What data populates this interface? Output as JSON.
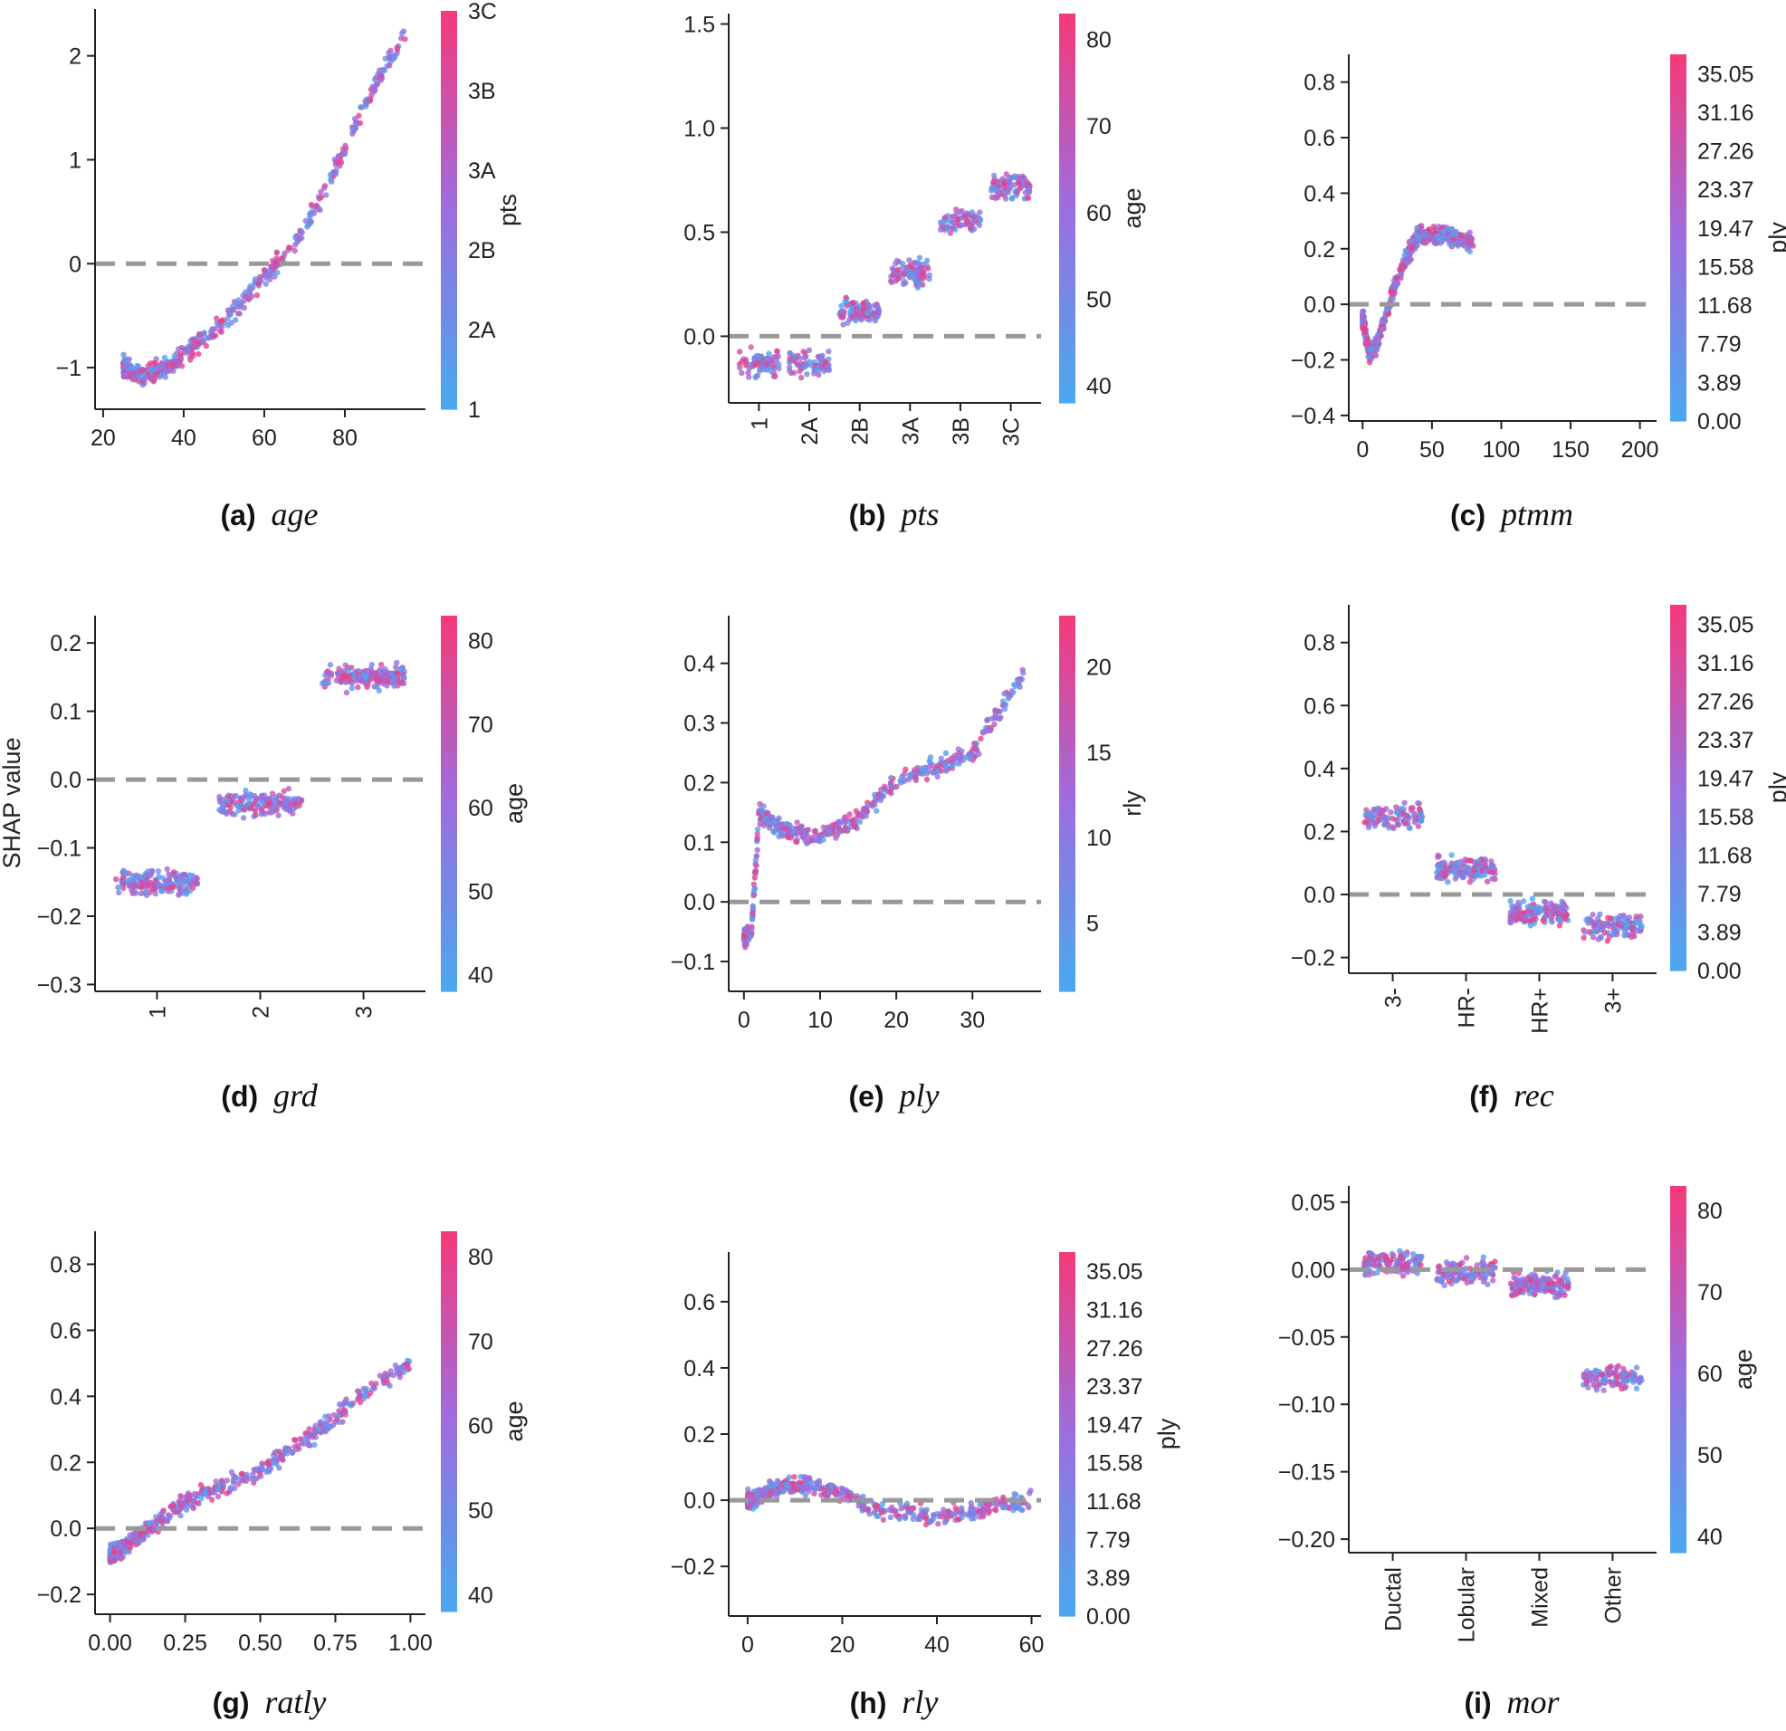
{
  "figure": {
    "y_axis_label": "SHAP value",
    "colors": {
      "low": "#4aa8f0",
      "mid": "#9b6ee0",
      "high": "#f43a7c",
      "zero_line": "#999999",
      "axis": "#222222"
    }
  },
  "chart_data": [
    {
      "id": "a",
      "type": "scatter",
      "caption_letter": "(a)",
      "caption_name": "age",
      "xlim": [
        18,
        100
      ],
      "ylim": [
        -1.4,
        2.45
      ],
      "xticks": [
        20,
        40,
        60,
        80
      ],
      "yticks": [
        -1,
        0,
        1,
        2
      ],
      "ytick_labels": [
        "−1",
        "0",
        "1",
        "2"
      ],
      "colorbar": {
        "label": "pts",
        "ticks": [
          "1",
          "2A",
          "2B",
          "3A",
          "3B",
          "3C"
        ]
      },
      "curve_points": [
        [
          25,
          -1.0
        ],
        [
          30,
          -1.08
        ],
        [
          35,
          -1.0
        ],
        [
          40,
          -0.88
        ],
        [
          45,
          -0.72
        ],
        [
          50,
          -0.55
        ],
        [
          55,
          -0.35
        ],
        [
          60,
          -0.12
        ],
        [
          65,
          0.08
        ],
        [
          70,
          0.33
        ],
        [
          75,
          0.7
        ],
        [
          80,
          1.12
        ],
        [
          85,
          1.5
        ],
        [
          90,
          1.9
        ],
        [
          95,
          2.2
        ]
      ]
    },
    {
      "id": "b",
      "type": "scatter",
      "caption_letter": "(b)",
      "caption_name": "pts",
      "categories": [
        "1",
        "2A",
        "2B",
        "3A",
        "3B",
        "3C"
      ],
      "ylim": [
        -0.32,
        1.55
      ],
      "yticks": [
        0.0,
        0.5,
        1.0,
        1.5
      ],
      "ytick_labels": [
        "0.0",
        "0.5",
        "1.0",
        "1.5"
      ],
      "colorbar": {
        "label": "age",
        "min": 38,
        "max": 83,
        "ticks": [
          40,
          50,
          60,
          70,
          80
        ]
      },
      "category_means": [
        -0.13,
        -0.13,
        0.12,
        0.3,
        0.55,
        0.72
      ]
    },
    {
      "id": "c",
      "type": "scatter",
      "caption_letter": "(c)",
      "caption_name": "ptmm",
      "xlim": [
        -10,
        212
      ],
      "ylim": [
        -0.42,
        0.9
      ],
      "xticks": [
        0,
        50,
        100,
        150,
        200
      ],
      "yticks": [
        -0.4,
        -0.2,
        0.0,
        0.2,
        0.4,
        0.6,
        0.8
      ],
      "ytick_labels": [
        "−0.4",
        "−0.2",
        "0.0",
        "0.2",
        "0.4",
        "0.6",
        "0.8"
      ],
      "colorbar": {
        "label": "ply",
        "min": 0,
        "max": 37,
        "ticks": [
          "0.00",
          "3.89",
          "7.79",
          "11.68",
          "15.58",
          "19.47",
          "23.37",
          "27.26",
          "31.16",
          "35.05"
        ]
      },
      "curve_points": [
        [
          0,
          -0.05
        ],
        [
          5,
          -0.18
        ],
        [
          10,
          -0.15
        ],
        [
          20,
          0.02
        ],
        [
          30,
          0.15
        ],
        [
          40,
          0.25
        ],
        [
          50,
          0.25
        ],
        [
          60,
          0.25
        ],
        [
          80,
          0.22
        ]
      ]
    },
    {
      "id": "d",
      "type": "scatter",
      "caption_letter": "(d)",
      "caption_name": "grd",
      "categories": [
        "1",
        "2",
        "3"
      ],
      "ylim": [
        -0.31,
        0.24
      ],
      "yticks": [
        -0.3,
        -0.2,
        -0.1,
        0.0,
        0.1,
        0.2
      ],
      "ytick_labels": [
        "−0.3",
        "−0.2",
        "−0.1",
        "0.0",
        "0.1",
        "0.2"
      ],
      "colorbar": {
        "label": "age",
        "min": 38,
        "max": 83,
        "ticks": [
          40,
          50,
          60,
          70,
          80
        ]
      },
      "category_means": [
        -0.15,
        -0.035,
        0.15
      ]
    },
    {
      "id": "e",
      "type": "scatter",
      "caption_letter": "(e)",
      "caption_name": "ply",
      "xlim": [
        -2,
        39
      ],
      "ylim": [
        -0.15,
        0.48
      ],
      "xticks": [
        0,
        10,
        20,
        30
      ],
      "yticks": [
        -0.1,
        0.0,
        0.1,
        0.2,
        0.3,
        0.4
      ],
      "ytick_labels": [
        "−0.1",
        "0.0",
        "0.1",
        "0.2",
        "0.3",
        "0.4"
      ],
      "colorbar": {
        "label": "rly",
        "min": 1,
        "max": 23,
        "ticks": [
          5,
          10,
          15,
          20
        ]
      },
      "curve_points": [
        [
          0,
          -0.06
        ],
        [
          1,
          -0.05
        ],
        [
          2,
          0.15
        ],
        [
          5,
          0.12
        ],
        [
          10,
          0.11
        ],
        [
          15,
          0.14
        ],
        [
          20,
          0.2
        ],
        [
          30,
          0.25
        ],
        [
          37,
          0.39
        ]
      ]
    },
    {
      "id": "f",
      "type": "scatter",
      "caption_letter": "(f)",
      "caption_name": "rec",
      "categories": [
        "3-",
        "HR-",
        "HR+",
        "3+"
      ],
      "ylim": [
        -0.25,
        0.92
      ],
      "yticks": [
        -0.2,
        0.0,
        0.2,
        0.4,
        0.6,
        0.8
      ],
      "ytick_labels": [
        "−0.2",
        "0.0",
        "0.2",
        "0.4",
        "0.6",
        "0.8"
      ],
      "colorbar": {
        "label": "ply",
        "min": 0,
        "max": 37,
        "ticks": [
          "0.00",
          "3.89",
          "7.79",
          "11.68",
          "15.58",
          "19.47",
          "23.37",
          "27.26",
          "31.16",
          "35.05"
        ]
      },
      "category_means": [
        0.25,
        0.08,
        -0.06,
        -0.1
      ]
    },
    {
      "id": "g",
      "type": "scatter",
      "caption_letter": "(g)",
      "caption_name": "ratly",
      "xlim": [
        -0.05,
        1.05
      ],
      "ylim": [
        -0.26,
        0.9
      ],
      "xticks": [
        0.0,
        0.25,
        0.5,
        0.75,
        1.0
      ],
      "xtick_labels": [
        "0.00",
        "0.25",
        "0.50",
        "0.75",
        "1.00"
      ],
      "yticks": [
        -0.2,
        0.0,
        0.2,
        0.4,
        0.6,
        0.8
      ],
      "ytick_labels": [
        "−0.2",
        "0.0",
        "0.2",
        "0.4",
        "0.6",
        "0.8"
      ],
      "colorbar": {
        "label": "age",
        "min": 38,
        "max": 83,
        "ticks": [
          40,
          50,
          60,
          70,
          80
        ]
      },
      "curve_points": [
        [
          0,
          -0.08
        ],
        [
          0.1,
          -0.02
        ],
        [
          0.25,
          0.08
        ],
        [
          0.5,
          0.17
        ],
        [
          0.7,
          0.3
        ],
        [
          0.9,
          0.45
        ],
        [
          1.0,
          0.5
        ]
      ]
    },
    {
      "id": "h",
      "type": "scatter",
      "caption_letter": "(h)",
      "caption_name": "rly",
      "xlim": [
        -4,
        62
      ],
      "ylim": [
        -0.35,
        0.75
      ],
      "xticks": [
        0,
        20,
        40,
        60
      ],
      "yticks": [
        -0.2,
        0.0,
        0.2,
        0.4,
        0.6
      ],
      "ytick_labels": [
        "−0.2",
        "0.0",
        "0.2",
        "0.4",
        "0.6"
      ],
      "colorbar": {
        "label": "ply",
        "min": 0,
        "max": 37,
        "ticks": [
          "0.00",
          "3.89",
          "7.79",
          "11.68",
          "15.58",
          "19.47",
          "23.37",
          "27.26",
          "31.16",
          "35.05"
        ]
      },
      "curve_points": [
        [
          0,
          0.0
        ],
        [
          5,
          0.03
        ],
        [
          10,
          0.05
        ],
        [
          15,
          0.04
        ],
        [
          20,
          0.02
        ],
        [
          25,
          -0.02
        ],
        [
          30,
          -0.03
        ],
        [
          40,
          -0.05
        ],
        [
          60,
          0.0
        ]
      ]
    },
    {
      "id": "i",
      "type": "scatter",
      "caption_letter": "(i)",
      "caption_name": "mor",
      "categories": [
        "Ductal",
        "Lobular",
        "Mixed",
        "Other"
      ],
      "ylim": [
        -0.21,
        0.062
      ],
      "yticks": [
        -0.2,
        -0.15,
        -0.1,
        -0.05,
        0.0,
        0.05
      ],
      "ytick_labels": [
        "−0.20",
        "−0.15",
        "−0.10",
        "−0.05",
        "0.00",
        "0.05"
      ],
      "colorbar": {
        "label": "age",
        "min": 38,
        "max": 83,
        "ticks": [
          40,
          50,
          60,
          70,
          80
        ]
      },
      "category_means": [
        0.005,
        -0.002,
        -0.012,
        -0.08
      ]
    }
  ]
}
